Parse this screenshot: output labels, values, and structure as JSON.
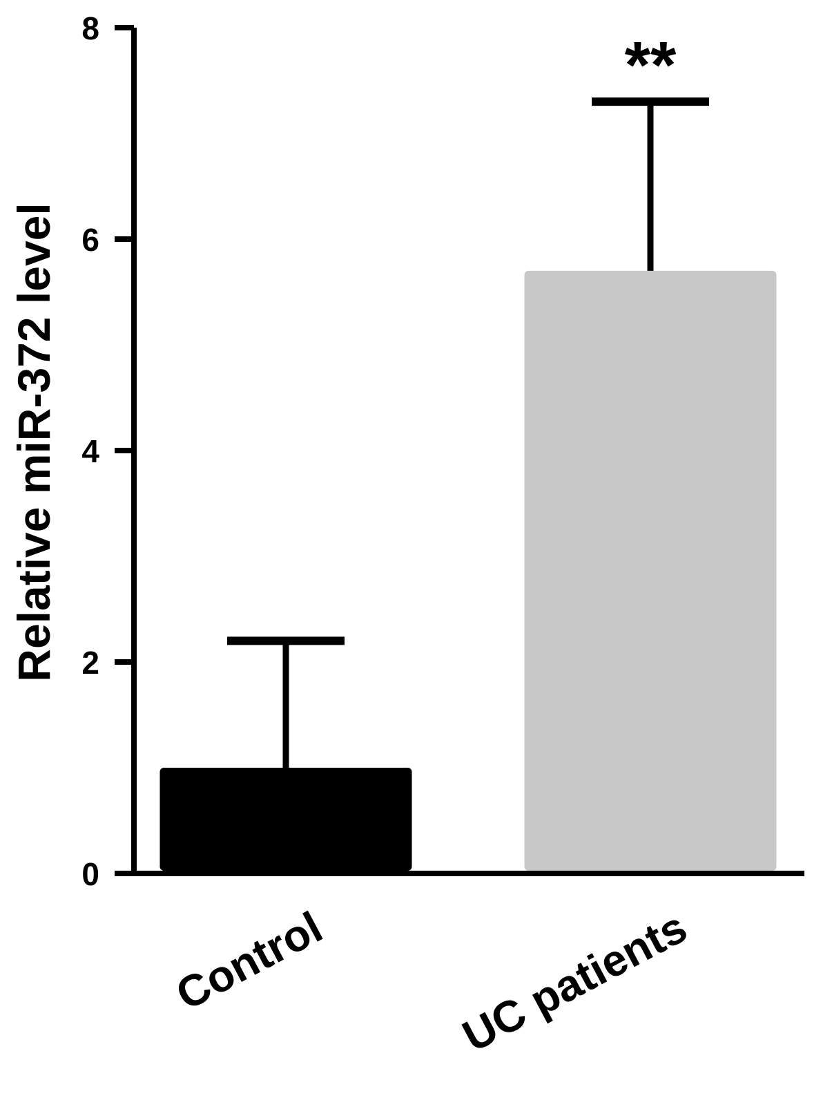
{
  "chart_data": {
    "type": "bar",
    "title": "",
    "xlabel": "",
    "ylabel": "Relative miR-372 level",
    "ylim": [
      0,
      8
    ],
    "yticks": [
      "0",
      "2",
      "4",
      "6",
      "8"
    ],
    "categories": [
      "Control",
      "UC patients"
    ],
    "values": [
      1.0,
      5.7
    ],
    "error_upper": [
      1.2,
      1.6
    ],
    "annotations": [
      "",
      "**"
    ],
    "colors": [
      "#000000",
      "#c8c8c8"
    ],
    "grid": false,
    "legend": "none"
  }
}
